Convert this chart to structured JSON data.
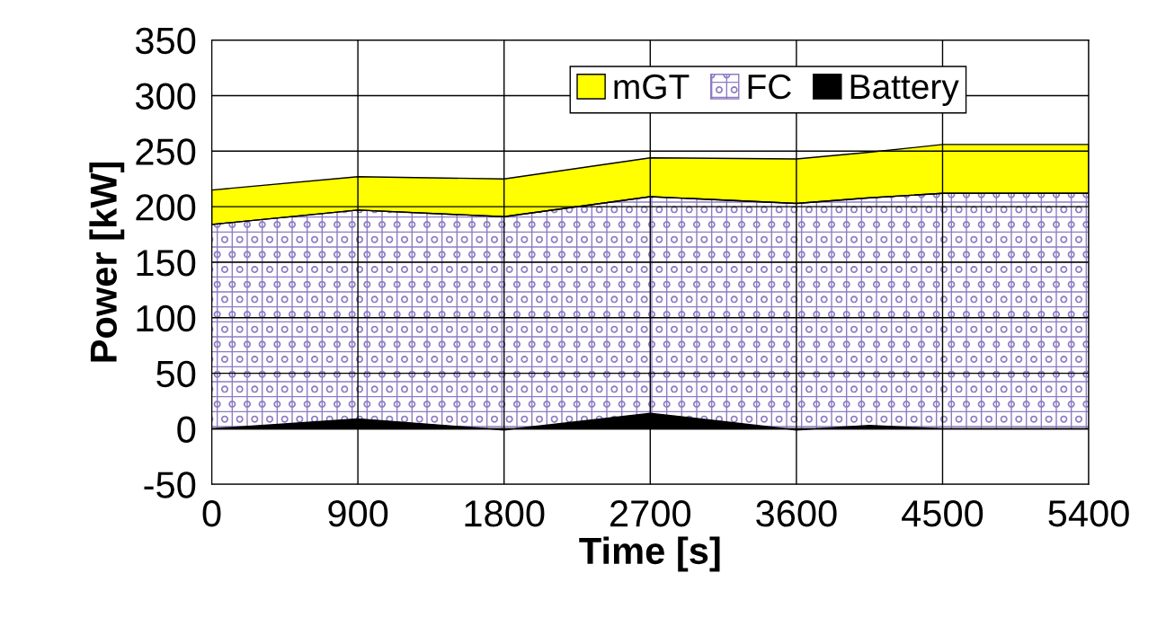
{
  "chart_data": {
    "type": "area",
    "stacked": true,
    "xlabel": "Time [s]",
    "ylabel": "Power [kW]",
    "x": [
      0,
      900,
      1800,
      2700,
      3600,
      4050,
      4500,
      5400
    ],
    "series": [
      {
        "name": "Battery",
        "color": "#000000",
        "values": [
          0,
          9,
          -1,
          14,
          -1,
          3,
          0,
          0
        ]
      },
      {
        "name": "FC",
        "color": "#8e7cc3",
        "values": [
          184,
          188,
          192,
          195,
          204,
          205,
          212,
          212
        ]
      },
      {
        "name": "mGT",
        "color": "#ffff00",
        "values": [
          31,
          30,
          34,
          35,
          40,
          41,
          44,
          44
        ]
      }
    ],
    "xlim": [
      0,
      5400
    ],
    "xticks": [
      0,
      900,
      1800,
      2700,
      3600,
      4500,
      5400
    ],
    "ylim": [
      -50,
      350
    ],
    "yticks": [
      -50,
      0,
      50,
      100,
      150,
      200,
      250,
      300,
      350
    ],
    "grid": true,
    "legend": "top right"
  }
}
